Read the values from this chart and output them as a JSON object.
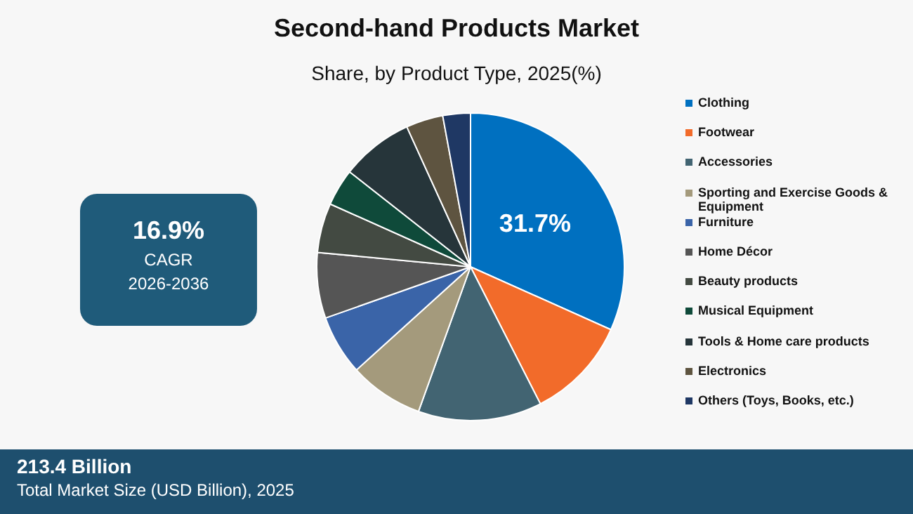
{
  "chart_data": {
    "type": "pie",
    "title": "Second-hand Products Market",
    "subtitle": "Share, by Product Type, 2025(%)",
    "categories": [
      "Clothing",
      "Footwear",
      "Accessories",
      "Sporting and Exercise Goods & Equipment",
      "Furniture",
      "Home Décor",
      "Beauty products",
      "Musical Equipment",
      "Tools & Home care products",
      "Electronics",
      "Others (Toys, Books, etc.)"
    ],
    "values": [
      31.7,
      10.8,
      13.0,
      7.8,
      6.3,
      6.9,
      5.2,
      3.9,
      7.6,
      3.9,
      2.9
    ],
    "colors": [
      "#0070c0",
      "#f26b2a",
      "#426472",
      "#a49a7c",
      "#3a64a8",
      "#555555",
      "#434a42",
      "#0f4a3a",
      "#26353a",
      "#5e5440",
      "#1f3864"
    ],
    "value_labels": [
      "31.7%",
      null,
      null,
      null,
      null,
      null,
      null,
      null,
      null,
      null,
      null
    ],
    "legend": "right",
    "annotations": [
      "16.9%",
      "CAGR",
      "2026-2036",
      "213.4 Billion",
      "Total Market Size (USD Billion), 2025"
    ]
  }
}
